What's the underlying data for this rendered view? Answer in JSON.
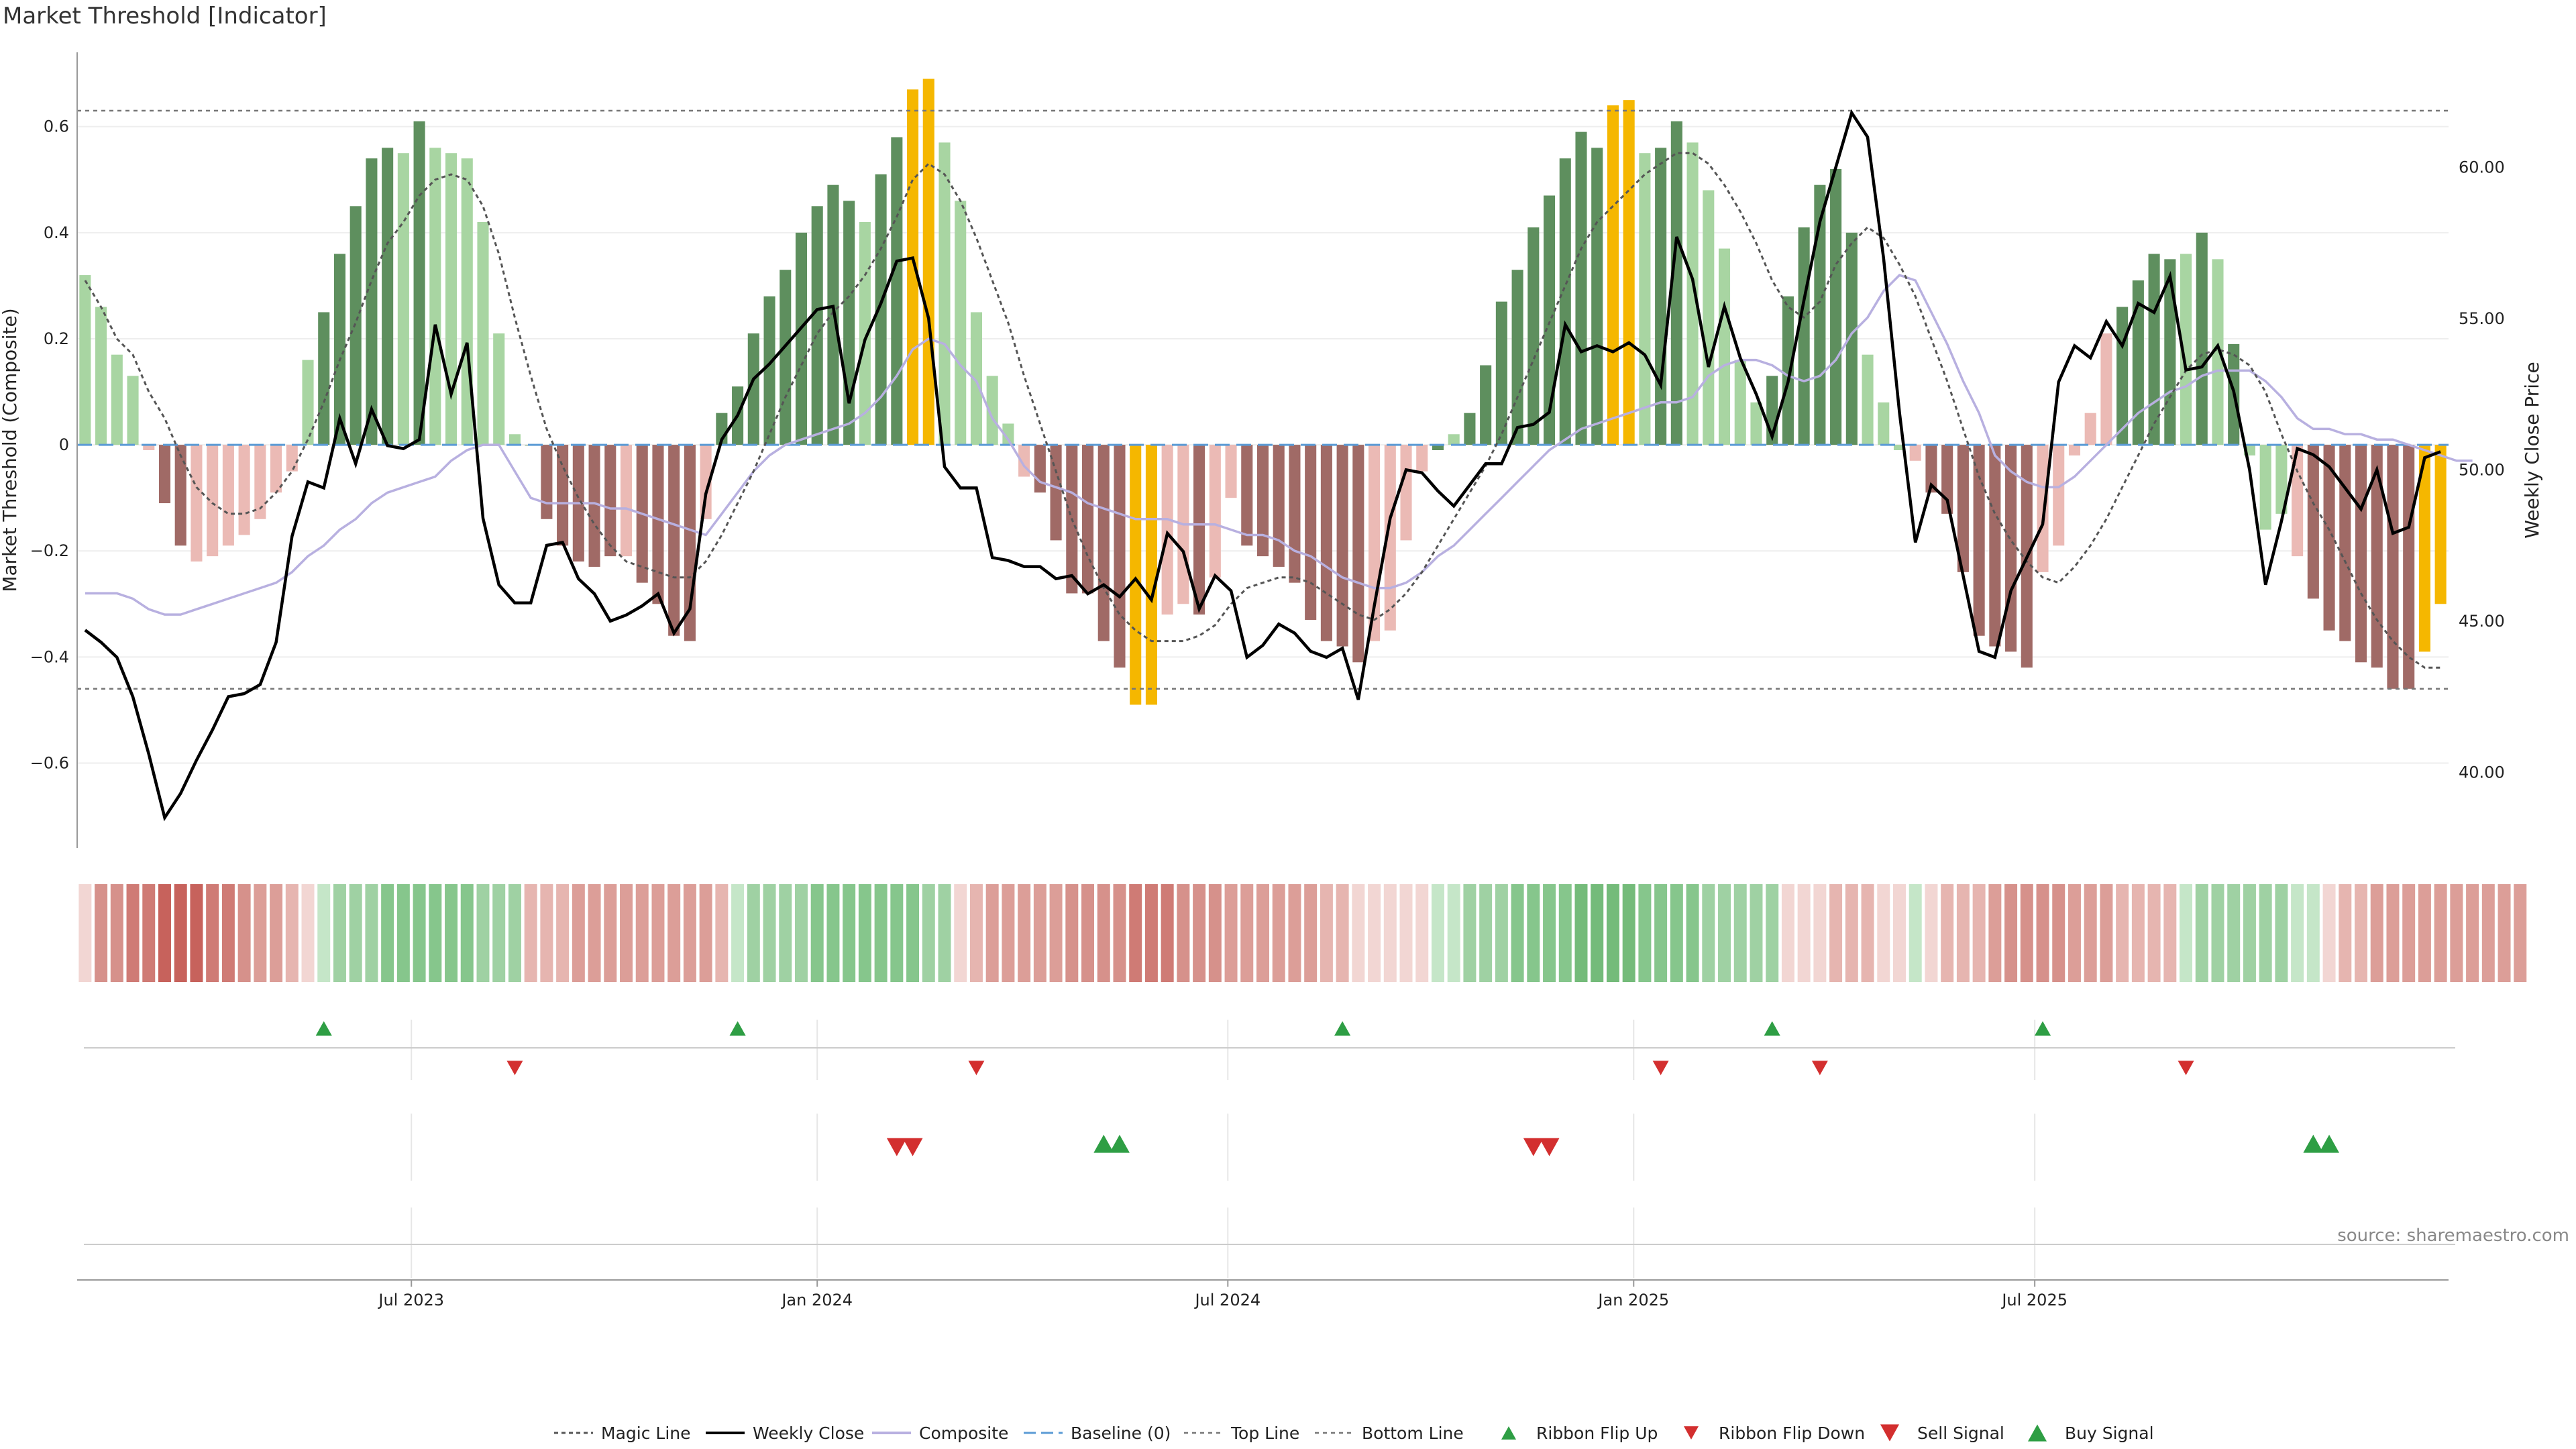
{
  "title": "Market Threshold [Indicator]",
  "source": "source: sharemaestro.com",
  "colors": {
    "bar_strong_up": "#5e8f5e",
    "bar_weak_up": "#a8d5a2",
    "bar_strong_down": "#a06a66",
    "bar_weak_down": "#ebbab5",
    "bar_extreme": "#f5b700",
    "magic_line": "#555555",
    "weekly_close": "#000000",
    "composite": "#b8b0e0",
    "baseline": "#5b9bd5",
    "threshold_line": "#777777",
    "signal_up": "#2e9e44",
    "signal_down": "#d32f2f"
  },
  "chart_data": {
    "type": "bar",
    "title": "Market Threshold [Indicator]",
    "ylabel": "Market Threshold (Composite)",
    "ylabel_right": "Weekly Close Price",
    "ylim": [
      -0.76,
      0.74
    ],
    "ylim_right": [
      37.5,
      63.8
    ],
    "yticks": [
      "0.6",
      "0.4",
      "0.2",
      "0",
      "−0.2",
      "−0.4",
      "−0.6"
    ],
    "yticks_right": [
      "60.00",
      "55.00",
      "50.00",
      "45.00",
      "40.00"
    ],
    "xticks": [
      "Jul 2023",
      "Jan 2024",
      "Jul 2024",
      "Jan 2025",
      "Jul 2025"
    ],
    "top_line": 0.63,
    "bottom_line": -0.46,
    "bars": [
      0.32,
      0.26,
      0.17,
      0.13,
      -0.01,
      -0.11,
      -0.19,
      -0.22,
      -0.21,
      -0.19,
      -0.17,
      -0.14,
      -0.09,
      -0.05,
      0.16,
      0.25,
      0.36,
      0.45,
      0.54,
      0.56,
      0.55,
      0.61,
      0.56,
      0.55,
      0.54,
      0.42,
      0.21,
      0.02,
      0.0,
      -0.14,
      -0.19,
      -0.22,
      -0.23,
      -0.21,
      -0.21,
      -0.26,
      -0.3,
      -0.36,
      -0.37,
      -0.14,
      0.06,
      0.11,
      0.21,
      0.28,
      0.33,
      0.4,
      0.45,
      0.49,
      0.46,
      0.42,
      0.51,
      0.58,
      0.67,
      0.69,
      0.57,
      0.46,
      0.25,
      0.13,
      0.04,
      -0.06,
      -0.09,
      -0.18,
      -0.28,
      -0.28,
      -0.37,
      -0.42,
      -0.49,
      -0.49,
      -0.32,
      -0.3,
      -0.32,
      -0.25,
      -0.1,
      -0.19,
      -0.21,
      -0.23,
      -0.26,
      -0.33,
      -0.37,
      -0.38,
      -0.41,
      -0.37,
      -0.35,
      -0.18,
      -0.05,
      -0.01,
      0.02,
      0.06,
      0.15,
      0.27,
      0.33,
      0.41,
      0.47,
      0.54,
      0.59,
      0.56,
      0.64,
      0.65,
      0.55,
      0.56,
      0.61,
      0.57,
      0.48,
      0.37,
      0.16,
      0.08,
      0.13,
      0.28,
      0.41,
      0.49,
      0.52,
      0.4,
      0.17,
      0.08,
      -0.01,
      -0.03,
      -0.09,
      -0.13,
      -0.24,
      -0.36,
      -0.38,
      -0.39,
      -0.42,
      -0.24,
      -0.19,
      -0.02,
      0.06,
      0.21,
      0.26,
      0.31,
      0.36,
      0.35,
      0.36,
      0.4,
      0.35,
      0.19,
      -0.02,
      -0.16,
      -0.13,
      -0.21,
      -0.29,
      -0.35,
      -0.37,
      -0.41,
      -0.42,
      -0.46,
      -0.46,
      -0.39,
      -0.3
    ],
    "bar_classes": [
      "wu",
      "wu",
      "wu",
      "wu",
      "wd",
      "sd",
      "sd",
      "wd",
      "wd",
      "wd",
      "wd",
      "wd",
      "wd",
      "wd",
      "wu",
      "su",
      "su",
      "su",
      "su",
      "su",
      "wu",
      "su",
      "wu",
      "wu",
      "wu",
      "wu",
      "wu",
      "wu",
      "su",
      "sd",
      "sd",
      "sd",
      "sd",
      "sd",
      "wd",
      "sd",
      "sd",
      "sd",
      "sd",
      "wd",
      "su",
      "su",
      "su",
      "su",
      "su",
      "su",
      "su",
      "su",
      "su",
      "wu",
      "su",
      "su",
      "ex",
      "ex",
      "wu",
      "wu",
      "wu",
      "wu",
      "wu",
      "wd",
      "sd",
      "sd",
      "sd",
      "sd",
      "sd",
      "sd",
      "ex",
      "ex",
      "wd",
      "wd",
      "sd",
      "wd",
      "wd",
      "sd",
      "sd",
      "sd",
      "sd",
      "sd",
      "sd",
      "sd",
      "sd",
      "wd",
      "wd",
      "wd",
      "wd",
      "su",
      "wu",
      "su",
      "su",
      "su",
      "su",
      "su",
      "su",
      "su",
      "su",
      "su",
      "ex",
      "ex",
      "wu",
      "su",
      "su",
      "wu",
      "wu",
      "wu",
      "wu",
      "wu",
      "su",
      "su",
      "su",
      "su",
      "su",
      "su",
      "wu",
      "wu",
      "wu",
      "wd",
      "sd",
      "sd",
      "sd",
      "sd",
      "sd",
      "sd",
      "sd",
      "wd",
      "wd",
      "wd",
      "wd",
      "wd",
      "su",
      "su",
      "su",
      "su",
      "wu",
      "su",
      "wu",
      "su",
      "wu",
      "wu",
      "wu",
      "wd",
      "sd",
      "sd",
      "sd",
      "sd",
      "sd",
      "sd",
      "sd",
      "ex",
      "ex",
      "wd",
      "wd"
    ],
    "magic_line": [
      0.31,
      0.26,
      0.2,
      0.17,
      0.1,
      0.05,
      -0.02,
      -0.08,
      -0.11,
      -0.13,
      -0.13,
      -0.12,
      -0.09,
      -0.05,
      0.01,
      0.08,
      0.16,
      0.23,
      0.31,
      0.38,
      0.42,
      0.47,
      0.5,
      0.51,
      0.5,
      0.45,
      0.36,
      0.24,
      0.13,
      0.03,
      -0.04,
      -0.1,
      -0.15,
      -0.19,
      -0.22,
      -0.23,
      -0.24,
      -0.25,
      -0.25,
      -0.22,
      -0.17,
      -0.11,
      -0.05,
      0.02,
      0.09,
      0.15,
      0.21,
      0.25,
      0.28,
      0.32,
      0.37,
      0.43,
      0.5,
      0.53,
      0.51,
      0.46,
      0.39,
      0.31,
      0.23,
      0.13,
      0.04,
      -0.05,
      -0.14,
      -0.21,
      -0.27,
      -0.32,
      -0.35,
      -0.37,
      -0.37,
      -0.37,
      -0.36,
      -0.34,
      -0.3,
      -0.27,
      -0.26,
      -0.25,
      -0.25,
      -0.26,
      -0.28,
      -0.3,
      -0.32,
      -0.33,
      -0.31,
      -0.28,
      -0.24,
      -0.19,
      -0.14,
      -0.09,
      -0.04,
      0.02,
      0.09,
      0.16,
      0.23,
      0.3,
      0.37,
      0.42,
      0.45,
      0.48,
      0.51,
      0.53,
      0.55,
      0.55,
      0.53,
      0.49,
      0.44,
      0.38,
      0.31,
      0.26,
      0.24,
      0.27,
      0.34,
      0.38,
      0.41,
      0.39,
      0.34,
      0.28,
      0.2,
      0.12,
      0.03,
      -0.06,
      -0.13,
      -0.18,
      -0.22,
      -0.25,
      -0.26,
      -0.23,
      -0.19,
      -0.14,
      -0.08,
      -0.02,
      0.04,
      0.09,
      0.14,
      0.17,
      0.18,
      0.17,
      0.15,
      0.1,
      0.02,
      -0.05,
      -0.11,
      -0.16,
      -0.22,
      -0.28,
      -0.33,
      -0.37,
      -0.4,
      -0.42,
      -0.42
    ],
    "composite": [
      -0.28,
      -0.28,
      -0.28,
      -0.29,
      -0.31,
      -0.32,
      -0.32,
      -0.31,
      -0.3,
      -0.29,
      -0.28,
      -0.27,
      -0.26,
      -0.24,
      -0.21,
      -0.19,
      -0.16,
      -0.14,
      -0.11,
      -0.09,
      -0.08,
      -0.07,
      -0.06,
      -0.03,
      -0.01,
      0.0,
      0.0,
      -0.05,
      -0.1,
      -0.11,
      -0.11,
      -0.11,
      -0.11,
      -0.12,
      -0.12,
      -0.13,
      -0.14,
      -0.15,
      -0.16,
      -0.17,
      -0.13,
      -0.09,
      -0.05,
      -0.02,
      0.0,
      0.01,
      0.02,
      0.03,
      0.04,
      0.06,
      0.09,
      0.13,
      0.18,
      0.2,
      0.19,
      0.15,
      0.12,
      0.05,
      0.01,
      -0.04,
      -0.07,
      -0.08,
      -0.09,
      -0.11,
      -0.12,
      -0.13,
      -0.14,
      -0.14,
      -0.14,
      -0.15,
      -0.15,
      -0.15,
      -0.16,
      -0.17,
      -0.17,
      -0.18,
      -0.2,
      -0.21,
      -0.23,
      -0.25,
      -0.26,
      -0.27,
      -0.27,
      -0.26,
      -0.24,
      -0.21,
      -0.19,
      -0.16,
      -0.13,
      -0.1,
      -0.07,
      -0.04,
      -0.01,
      0.01,
      0.03,
      0.04,
      0.05,
      0.06,
      0.07,
      0.08,
      0.08,
      0.09,
      0.13,
      0.15,
      0.16,
      0.16,
      0.15,
      0.13,
      0.12,
      0.13,
      0.16,
      0.21,
      0.24,
      0.29,
      0.32,
      0.31,
      0.25,
      0.19,
      0.12,
      0.06,
      -0.02,
      -0.05,
      -0.07,
      -0.08,
      -0.08,
      -0.06,
      -0.03,
      0.0,
      0.03,
      0.06,
      0.08,
      0.1,
      0.11,
      0.13,
      0.14,
      0.14,
      0.14,
      0.12,
      0.09,
      0.05,
      0.03,
      0.03,
      0.02,
      0.02,
      0.01,
      0.01,
      0.0,
      -0.01,
      -0.02,
      -0.03,
      -0.03
    ],
    "weekly_close": [
      44.7,
      44.3,
      43.8,
      42.5,
      40.6,
      38.5,
      39.3,
      40.4,
      41.4,
      42.5,
      42.6,
      42.9,
      44.3,
      47.8,
      49.6,
      49.4,
      51.7,
      50.2,
      52.0,
      50.8,
      50.7,
      51.0,
      54.8,
      52.5,
      54.2,
      48.4,
      46.2,
      45.6,
      45.6,
      47.5,
      47.6,
      46.4,
      45.9,
      45.0,
      45.2,
      45.5,
      45.9,
      44.6,
      45.4,
      49.2,
      51.0,
      51.8,
      53.0,
      53.5,
      54.1,
      54.7,
      55.3,
      55.4,
      52.2,
      54.3,
      55.5,
      56.9,
      57.0,
      55.0,
      50.1,
      49.4,
      49.4,
      47.1,
      47.0,
      46.8,
      46.8,
      46.4,
      46.5,
      45.9,
      46.2,
      45.8,
      46.4,
      45.7,
      47.9,
      47.3,
      45.4,
      46.5,
      46.0,
      43.8,
      44.2,
      44.9,
      44.6,
      44.0,
      43.8,
      44.1,
      42.4,
      45.5,
      48.4,
      50.0,
      49.9,
      49.3,
      48.8,
      49.5,
      50.2,
      50.2,
      51.4,
      51.5,
      51.9,
      54.8,
      53.9,
      54.1,
      53.9,
      54.2,
      53.8,
      52.8,
      57.7,
      56.3,
      53.4,
      55.4,
      53.7,
      52.5,
      51.1,
      52.9,
      55.6,
      58.2,
      60.0,
      61.8,
      61.0,
      57.0,
      51.9,
      47.6,
      49.5,
      49.0,
      46.5,
      44.0,
      43.8,
      46.0,
      47.1,
      48.2,
      52.9,
      54.1,
      53.7,
      54.9,
      54.1,
      55.5,
      55.2,
      56.4,
      53.3,
      53.4,
      54.1,
      52.6,
      50.0,
      46.2,
      48.3,
      50.7,
      50.5,
      50.1,
      49.4,
      48.7,
      50.0,
      47.9,
      48.1,
      50.4,
      50.6
    ]
  },
  "ribbon": {
    "cells": [
      "r1",
      "r4",
      "r4",
      "r5",
      "r5",
      "r6",
      "r6",
      "r6",
      "r5",
      "r5",
      "r4",
      "r3",
      "r3",
      "r2",
      "r1",
      "g1",
      "g2",
      "g2",
      "g2",
      "g3",
      "g3",
      "g3",
      "g3",
      "g3",
      "g3",
      "g2",
      "g2",
      "g2",
      "r2",
      "r2",
      "r2",
      "r3",
      "r3",
      "r3",
      "r3",
      "r3",
      "r3",
      "r3",
      "r3",
      "r3",
      "r2",
      "g1",
      "g2",
      "g2",
      "g2",
      "g2",
      "g3",
      "g3",
      "g3",
      "g3",
      "g3",
      "g3",
      "g3",
      "g2",
      "g2",
      "r1",
      "r2",
      "r3",
      "r3",
      "r3",
      "r3",
      "r3",
      "r4",
      "r4",
      "r4",
      "r4",
      "r5",
      "r5",
      "r5",
      "r4",
      "r4",
      "r4",
      "r3",
      "r3",
      "r3",
      "r3",
      "r3",
      "r3",
      "r2",
      "r2",
      "r1",
      "r1",
      "r1",
      "r1",
      "r1",
      "g1",
      "g1",
      "g2",
      "g2",
      "g2",
      "g3",
      "g3",
      "g3",
      "g3",
      "g4",
      "g4",
      "g4",
      "g4",
      "g3",
      "g3",
      "g3",
      "g3",
      "g2",
      "g2",
      "g2",
      "g2",
      "g2",
      "r1",
      "r1",
      "r1",
      "r2",
      "r2",
      "r2",
      "r1",
      "r1",
      "g1",
      "r1",
      "r2",
      "r2",
      "r2",
      "r3",
      "r4",
      "r4",
      "r4",
      "r4",
      "r3",
      "r3",
      "r3",
      "r2",
      "r2",
      "r2",
      "r2",
      "g1",
      "g2",
      "g2",
      "g2",
      "g2",
      "g2",
      "g2",
      "g1",
      "g1",
      "r1",
      "r2",
      "r2",
      "r3",
      "r3",
      "r3",
      "r3",
      "r3",
      "r3",
      "r3",
      "r3",
      "r3",
      "r3"
    ]
  },
  "signals": {
    "flip_up": [
      15,
      41,
      79,
      106,
      123
    ],
    "flip_down": [
      27,
      56,
      99,
      109,
      132
    ],
    "sell": [
      51,
      52,
      91,
      92
    ],
    "buy": [
      64,
      65,
      140,
      141
    ]
  },
  "legend": [
    {
      "key": "magic",
      "label": "Magic Line"
    },
    {
      "key": "close",
      "label": "Weekly Close"
    },
    {
      "key": "composite",
      "label": "Composite"
    },
    {
      "key": "baseline",
      "label": "Baseline (0)"
    },
    {
      "key": "top",
      "label": "Top Line"
    },
    {
      "key": "bottom",
      "label": "Bottom Line"
    },
    {
      "key": "flipup",
      "label": "Ribbon Flip Up"
    },
    {
      "key": "flipdown",
      "label": "Ribbon Flip Down"
    },
    {
      "key": "sell",
      "label": "Sell Signal"
    },
    {
      "key": "buy",
      "label": "Buy Signal"
    }
  ]
}
